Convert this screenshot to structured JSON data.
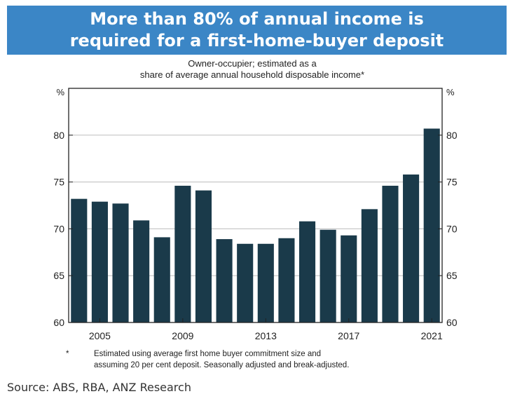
{
  "banner": {
    "line1": "More than 80% of annual income is",
    "line2": "required for a first-home-buyer deposit",
    "background": "#3b86c6"
  },
  "chart_data": {
    "type": "bar",
    "title": "",
    "subtitle_lines": [
      "Owner-occupier; estimated as a",
      "share of average annual household disposable income*"
    ],
    "x": [
      2004,
      2005,
      2006,
      2007,
      2008,
      2009,
      2010,
      2011,
      2012,
      2013,
      2014,
      2015,
      2016,
      2017,
      2018,
      2019,
      2020,
      2021
    ],
    "values": [
      73.2,
      72.9,
      72.7,
      70.9,
      69.1,
      74.6,
      74.1,
      68.9,
      68.4,
      68.4,
      69.0,
      70.8,
      69.9,
      69.3,
      72.1,
      74.6,
      75.8,
      80.7
    ],
    "x_tick_labels": [
      "2005",
      "2009",
      "2013",
      "2017",
      "2021"
    ],
    "x_tick_values": [
      2005,
      2009,
      2013,
      2017,
      2021
    ],
    "y_ticks": [
      "60",
      "65",
      "70",
      "75",
      "80"
    ],
    "y_tick_values": [
      60,
      65,
      70,
      75,
      80
    ],
    "y_unit_left": "%",
    "y_unit_right": "%",
    "ylim": [
      60,
      85
    ],
    "grid": true,
    "bar_color": "#1a3a4a",
    "xlabel": "",
    "ylabel": ""
  },
  "footnote": {
    "mark": "*",
    "line1": "Estimated using average first home buyer commitment size and",
    "line2": "assuming 20 per cent deposit. Seasonally adjusted and break-adjusted."
  },
  "source": "Source: ABS, RBA, ANZ Research"
}
